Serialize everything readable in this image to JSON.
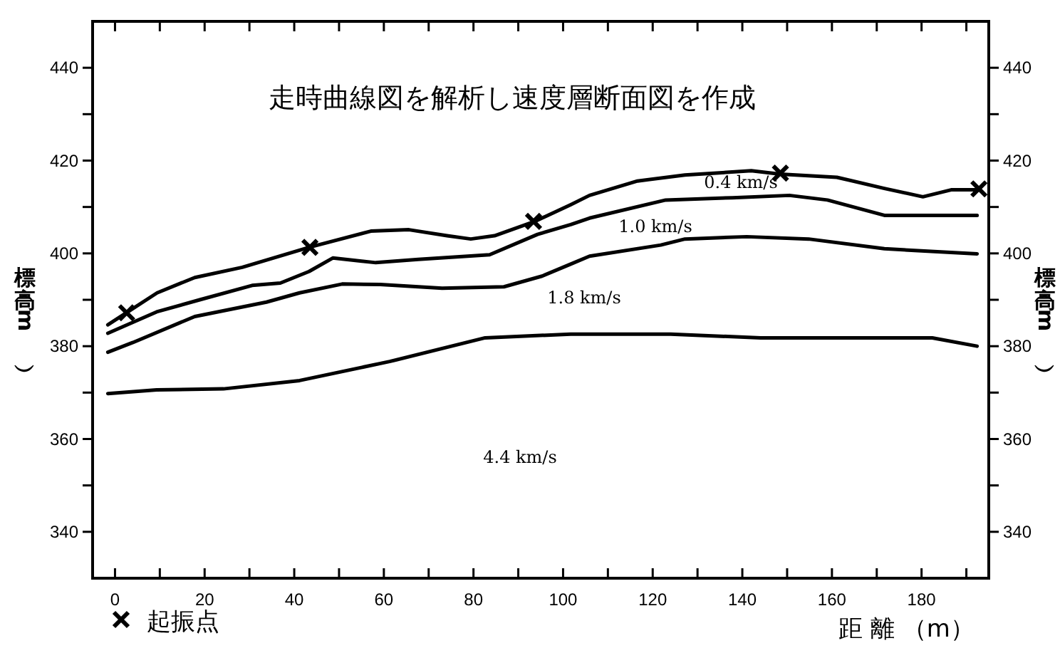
{
  "chart_data": {
    "type": "line",
    "title": "走時曲線図を解析し速度層断面図を作成",
    "xlabel": "距 離 （m）",
    "ylabel": "標高（m）",
    "y2label": "標高（m）",
    "xlim": [
      -5,
      195
    ],
    "ylim": [
      330,
      450
    ],
    "y2lim": [
      330,
      450
    ],
    "xticks": [
      0,
      {
        "value": 10,
        "label": null
      },
      20,
      {
        "value": 30,
        "label": null
      },
      40,
      {
        "value": 50,
        "label": null
      },
      60,
      {
        "value": 70,
        "label": null
      },
      80,
      {
        "value": 90,
        "label": null
      },
      100,
      {
        "value": 110,
        "label": null
      },
      120,
      {
        "value": 130,
        "label": null
      },
      140,
      {
        "value": 150,
        "label": null
      },
      160,
      {
        "value": 170,
        "label": null
      },
      180,
      {
        "value": 190,
        "label": null
      }
    ],
    "yticks": [
      340,
      {
        "value": 350,
        "label": null
      },
      360,
      {
        "value": 370,
        "label": null
      },
      380,
      {
        "value": 390,
        "label": null
      },
      400,
      {
        "value": 410,
        "label": null
      },
      420,
      {
        "value": 430,
        "label": null
      },
      440
    ],
    "y2ticks": [
      340,
      {
        "value": 350,
        "label": null
      },
      360,
      {
        "value": 370,
        "label": null
      },
      380,
      {
        "value": 390,
        "label": null
      },
      400,
      {
        "value": 410,
        "label": null
      },
      420,
      {
        "value": 430,
        "label": null
      },
      440
    ],
    "legend": "bottom left",
    "series": [
      {
        "color": "#000000",
        "x": [
          -1.6,
          3,
          9.4,
          17.8,
          28.4,
          43.3,
          57.1,
          65.6,
          74.1,
          79.4,
          84.7,
          93.7,
          101.7,
          105.9,
          116.6,
          127.2,
          142,
          148.4,
          161.1,
          171.7,
          180.3,
          186.6,
          192.4
        ],
        "values": [
          384.6,
          387.5,
          391.5,
          394.8,
          397,
          401.3,
          404.8,
          405.1,
          403.8,
          403.1,
          403.8,
          406.9,
          410.5,
          412.5,
          415.6,
          416.9,
          417.8,
          417.1,
          416.4,
          414,
          412.2,
          413.7,
          413.7
        ]
      },
      {
        "color": "#000000",
        "x": [
          -1.6,
          9.3,
          18.9,
          30.6,
          36.9,
          43.3,
          48.6,
          58.2,
          67.7,
          83.6,
          94.3,
          101.7,
          105.9,
          122.9,
          137.8,
          150.5,
          159,
          171.7,
          192.4
        ],
        "values": [
          382.8,
          387.4,
          390,
          393.1,
          393.6,
          396.1,
          399,
          398,
          398.7,
          399.7,
          404.1,
          406.2,
          407.6,
          411.5,
          412,
          412.5,
          411.5,
          408.2,
          408.2
        ]
      },
      {
        "color": "#000000",
        "x": [
          -1.6,
          4,
          17.8,
          33.8,
          41.2,
          50.7,
          59.2,
          73,
          86.8,
          95.3,
          101.7,
          105.9,
          121.8,
          127.2,
          141,
          154.8,
          171.7,
          192.4
        ],
        "values": [
          378.7,
          380.8,
          386.4,
          389.5,
          391.5,
          393.4,
          393.3,
          392.5,
          392.8,
          395.1,
          397.7,
          399.4,
          401.8,
          403.1,
          403.6,
          403.1,
          401,
          399.9
        ]
      },
      {
        "color": "#000000",
        "x": [
          -1.6,
          9.3,
          24.2,
          41.2,
          61.3,
          82.6,
          101.7,
          124,
          144.1,
          182.4,
          192.4
        ],
        "values": [
          369.8,
          370.6,
          370.8,
          372.6,
          376.7,
          381.8,
          382.6,
          382.6,
          381.8,
          381.8,
          380
        ]
      },
      {
        "type": "scatter",
        "name": "起振点",
        "color": "#000000",
        "marker": "cross",
        "x": [
          2.6,
          43.5,
          93.4,
          148.5,
          192.8
        ],
        "values": [
          387.2,
          401.3,
          406.9,
          417.3,
          413.9
        ]
      }
    ],
    "annotations": [
      "0.4 km/s",
      "1.0 km/s",
      "1.8 km/s",
      "4.4 km/s"
    ]
  }
}
